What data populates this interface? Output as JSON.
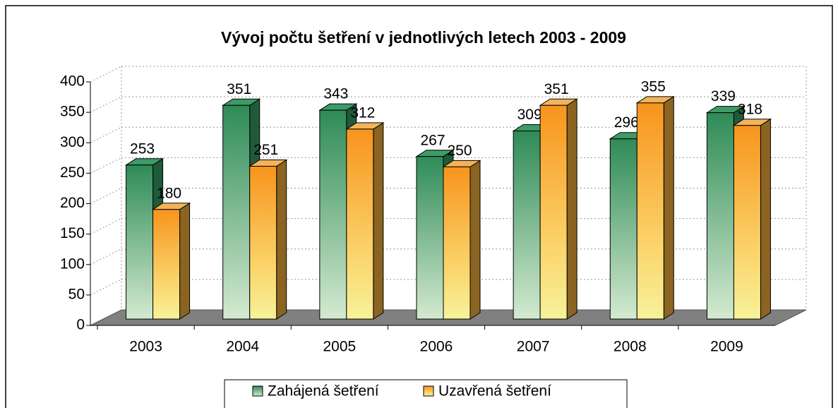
{
  "chart_data": {
    "type": "bar3d",
    "title": "Vývoj počtu šetření v jednotlivých letech 2003 - 2009",
    "categories": [
      "2003",
      "2004",
      "2005",
      "2006",
      "2007",
      "2008",
      "2009"
    ],
    "series": [
      {
        "name": "Zahájená šetření",
        "color": "#2e8b57",
        "values": [
          253,
          351,
          343,
          267,
          309,
          296,
          339
        ]
      },
      {
        "name": "Uzavřená šetření",
        "color": "#f7941d",
        "values": [
          180,
          251,
          312,
          250,
          351,
          355,
          318
        ]
      }
    ],
    "ylim": [
      0,
      400
    ],
    "yticks": [
      0,
      50,
      100,
      150,
      200,
      250,
      300,
      350,
      400
    ],
    "grid": true
  }
}
